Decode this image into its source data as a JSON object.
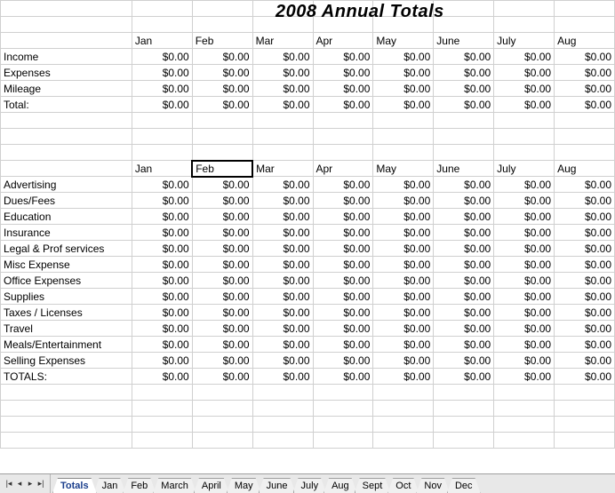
{
  "title": "2008 Annual Totals",
  "months": [
    "Jan",
    "Feb",
    "Mar",
    "Apr",
    "May",
    "June",
    "July",
    "Aug"
  ],
  "zero": "$0.00",
  "summary_rows": [
    "Income",
    "Expenses",
    "Mileage",
    "Total:"
  ],
  "detail_rows": [
    "Advertising",
    "Dues/Fees",
    "Education",
    "Insurance",
    "Legal & Prof services",
    "Misc Expense",
    "Office Expenses",
    "Supplies",
    "Taxes / Licenses",
    "Travel",
    "Meals/Entertainment",
    "Selling Expenses",
    "TOTALS:"
  ],
  "tabs": [
    "Totals",
    "Jan",
    "Feb",
    "March",
    "April",
    "May",
    "June",
    "July",
    "Aug",
    "Sept",
    "Oct",
    "Nov",
    "Dec"
  ],
  "active_tab": "Totals",
  "selected_cell": {
    "table": "detail",
    "row": -1,
    "col": 1
  },
  "colors": {
    "grid": "#d0d0d0",
    "selection": "#000000",
    "tab_active_text": "#1a3e8c",
    "tab_bg": "#f0f0f0",
    "tabbar_bg": "#e8e8e8"
  }
}
